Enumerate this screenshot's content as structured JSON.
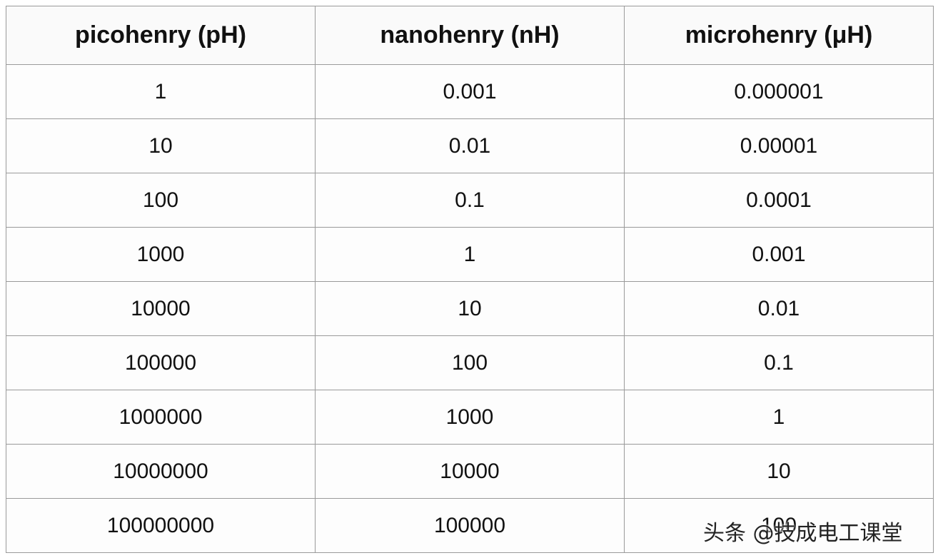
{
  "table": {
    "header": [
      "picohenry (pH)",
      "nanohenry (nH)",
      "microhenry (μH)"
    ],
    "rows": [
      [
        "1",
        "0.001",
        "0.000001"
      ],
      [
        "10",
        "0.01",
        "0.00001"
      ],
      [
        "100",
        "0.1",
        "0.0001"
      ],
      [
        "1000",
        "1",
        "0.001"
      ],
      [
        "10000",
        "10",
        "0.01"
      ],
      [
        "100000",
        "100",
        "0.1"
      ],
      [
        "1000000",
        "1000",
        "1"
      ],
      [
        "10000000",
        "10000",
        "10"
      ],
      [
        "100000000",
        "100000",
        "100"
      ]
    ]
  },
  "watermark": "头条 @技成电工课堂"
}
